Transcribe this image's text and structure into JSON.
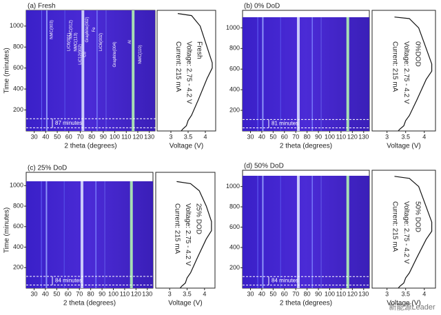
{
  "panels": [
    {
      "label": "(a) Fresh",
      "ylabel": "Time (minutes)",
      "xlabel": "2 theta (degrees)",
      "vxlabel": "Voltage (V)",
      "xlim": [
        23,
        135
      ],
      "xticks": [
        30,
        40,
        50,
        60,
        70,
        80,
        90,
        100,
        110,
        120,
        130
      ],
      "ylim": [
        0,
        1150
      ],
      "yticks": [
        200,
        400,
        600,
        800,
        1000
      ],
      "vxlim": [
        2.6,
        4.3
      ],
      "vxticks": [
        3.0,
        3.5,
        4.0
      ],
      "dashed": [
        30,
        117
      ],
      "interval": "87 minutes",
      "condition": [
        "Fresh",
        "Voltage: 2.75 - 4.2 V",
        "Current: 215 mA"
      ],
      "peaks": [
        "NMC(003)",
        "LiC6(001)",
        "LiC12(002)",
        "Graphite(002)",
        "LiC6(002)",
        "Graphite(004)",
        "NMC(012)",
        "NMC(113)",
        "Cu",
        "Fe",
        "Al",
        "NMC(110)"
      ],
      "curve": {
        "time": [
          1120,
          1100,
          1000,
          800,
          650,
          600,
          500,
          300,
          150,
          100,
          50,
          20,
          0
        ],
        "voltage": [
          3.2,
          3.6,
          3.85,
          4.05,
          4.2,
          4.2,
          4.05,
          3.8,
          3.6,
          3.5,
          3.45,
          3.35,
          3.3
        ]
      }
    },
    {
      "label": "(b) 0% DoD",
      "xlabel": "2 theta (degrees)",
      "vxlabel": "Voltage (V)",
      "xlim": [
        23,
        135
      ],
      "xticks": [
        30,
        40,
        50,
        60,
        70,
        80,
        90,
        100,
        110,
        120,
        130
      ],
      "ylim": [
        0,
        1170
      ],
      "yticks": [
        200,
        400,
        600,
        800,
        1000
      ],
      "vxlim": [
        2.6,
        4.3
      ],
      "vxticks": [
        3.0,
        3.5,
        4.0
      ],
      "dashed": [
        30,
        111
      ],
      "interval": "81 minutes",
      "condition": [
        "0%DOD",
        "Voltage: 2.75 - 4.2 V",
        "Current: 215 mA"
      ],
      "curve": {
        "time": [
          1105,
          1090,
          1000,
          800,
          650,
          580,
          500,
          300,
          150,
          100,
          50,
          20,
          0
        ],
        "voltage": [
          3.2,
          3.6,
          3.85,
          4.05,
          4.2,
          4.2,
          4.05,
          3.8,
          3.6,
          3.5,
          3.45,
          3.35,
          3.3
        ]
      }
    },
    {
      "label": "(c) 25% DoD",
      "ylabel": "Time (minutes)",
      "xlabel": "2 theta (degrees)",
      "vxlabel": "Voltage (V)",
      "xlim": [
        23,
        135
      ],
      "xticks": [
        30,
        40,
        50,
        60,
        70,
        80,
        90,
        100,
        110,
        120,
        130
      ],
      "ylim": [
        0,
        1130
      ],
      "yticks": [
        200,
        400,
        600,
        800,
        1000
      ],
      "vxlim": [
        2.6,
        4.3
      ],
      "vxticks": [
        3.0,
        3.5,
        4.0
      ],
      "dashed": [
        30,
        114
      ],
      "interval": "84 minutes",
      "condition": [
        "25% DOD",
        "Voltage: 2.75 - 4.2 V",
        "Current: 215 mA"
      ],
      "curve": {
        "time": [
          1040,
          1020,
          950,
          800,
          650,
          560,
          480,
          300,
          150,
          100,
          50,
          20,
          0
        ],
        "voltage": [
          3.2,
          3.6,
          3.85,
          4.05,
          4.2,
          4.2,
          4.05,
          3.8,
          3.6,
          3.5,
          3.45,
          3.35,
          3.3
        ]
      }
    },
    {
      "label": "(d) 50% DoD",
      "xlabel": "2 theta (degrees)",
      "vxlabel": "Voltage (V)",
      "xlim": [
        23,
        135
      ],
      "xticks": [
        30,
        40,
        50,
        60,
        70,
        80,
        90,
        100,
        110,
        120,
        130
      ],
      "ylim": [
        0,
        1160
      ],
      "yticks": [
        200,
        400,
        600,
        800,
        1000
      ],
      "vxlim": [
        2.6,
        4.3
      ],
      "vxticks": [
        3.0,
        3.5,
        4.0
      ],
      "dashed": [
        30,
        114
      ],
      "interval": "84 minutes",
      "condition": [
        "50% DOD",
        "Voltage: 2.75 - 4.2 V",
        "Current: 215 mA"
      ],
      "curve": {
        "time": [
          1100,
          1080,
          1000,
          800,
          650,
          560,
          480,
          300,
          150,
          100,
          50,
          20,
          0
        ],
        "voltage": [
          3.2,
          3.6,
          3.85,
          4.05,
          4.2,
          4.2,
          4.05,
          3.8,
          3.6,
          3.5,
          3.45,
          3.35,
          3.3
        ]
      }
    }
  ],
  "watermark": "新能源Leader"
}
